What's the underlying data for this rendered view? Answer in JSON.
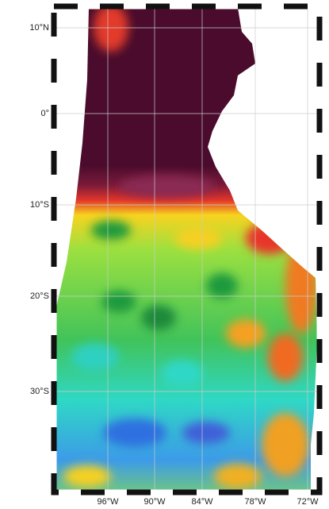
{
  "map": {
    "y_labels": [
      "10°N",
      "0°",
      "10°S",
      "20°S",
      "30°S"
    ],
    "x_labels": [
      "96°W",
      "90°W",
      "84°W",
      "78°W",
      "72°W"
    ]
  }
}
